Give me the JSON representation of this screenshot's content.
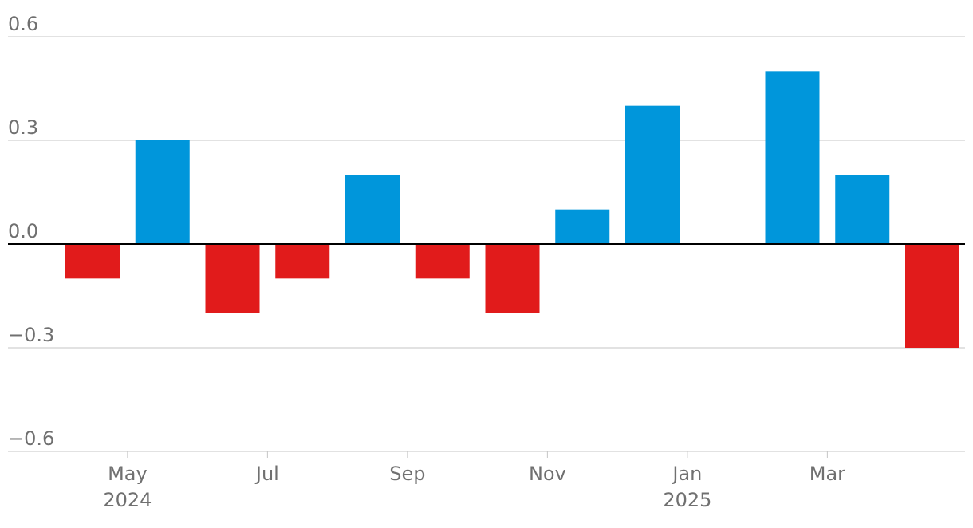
{
  "chart_data": {
    "type": "bar",
    "x": [
      "2024-04",
      "2024-05",
      "2024-06",
      "2024-07",
      "2024-08",
      "2024-09",
      "2024-10",
      "2024-11",
      "2024-12",
      "2025-01",
      "2025-02",
      "2025-03",
      "2025-04"
    ],
    "values": [
      -0.1,
      0.3,
      -0.2,
      -0.1,
      0.2,
      -0.1,
      -0.2,
      0.1,
      0.4,
      0.0,
      0.5,
      0.2,
      -0.3
    ],
    "ylim": [
      -0.6,
      0.6
    ],
    "y_ticks": [
      {
        "value": 0.6,
        "label": "0.6"
      },
      {
        "value": 0.3,
        "label": "0.3"
      },
      {
        "value": 0.0,
        "label": "0.0"
      },
      {
        "value": -0.3,
        "label": "−0.3"
      },
      {
        "value": -0.6,
        "label": "−0.6"
      }
    ],
    "x_ticks": [
      {
        "at": "2024-05",
        "label": "May",
        "sublabel": "2024"
      },
      {
        "at": "2024-07",
        "label": "Jul",
        "sublabel": ""
      },
      {
        "at": "2024-09",
        "label": "Sep",
        "sublabel": ""
      },
      {
        "at": "2024-11",
        "label": "Nov",
        "sublabel": ""
      },
      {
        "at": "2025-01",
        "label": "Jan",
        "sublabel": "2025"
      },
      {
        "at": "2025-03",
        "label": "Mar",
        "sublabel": ""
      }
    ],
    "colors": {
      "positive": "#0096db",
      "negative": "#e11b1b",
      "grid": "#c4c4c4",
      "zero": "#000000",
      "text": "#707070"
    },
    "grid": true
  }
}
